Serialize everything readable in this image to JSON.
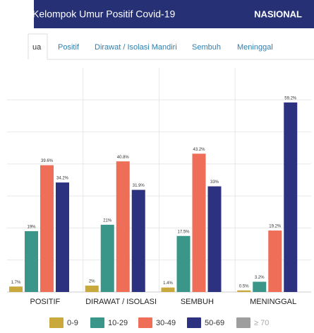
{
  "header": {
    "title": "Kelompok Umur Positif Covid-19",
    "scope": "NASIONAL"
  },
  "tabs": [
    "ua",
    "Positif",
    "Dirawat / Isolasi Mandiri",
    "Sembuh",
    "Meninggal"
  ],
  "chart_data": {
    "type": "bar",
    "categories": [
      "POSITIF",
      "DIRAWAT / ISOLASI",
      "SEMBUH",
      "MENINGGAL"
    ],
    "series": [
      {
        "name": "0-9",
        "color": "#c9a83c",
        "values": [
          1.7,
          2,
          1.4,
          0.5
        ],
        "value_labels": [
          "1.7%",
          "2%",
          "1.4%",
          "0.5%"
        ]
      },
      {
        "name": "10-29",
        "color": "#3a9689",
        "values": [
          19,
          21,
          17.5,
          3.2
        ],
        "value_labels": [
          "19%",
          "21%",
          "17.5%",
          "3.2%"
        ]
      },
      {
        "name": "30-49",
        "color": "#ee6e57",
        "values": [
          39.6,
          40.8,
          43.2,
          19.2
        ],
        "value_labels": [
          "39.6%",
          "40.8%",
          "43.2%",
          "19.2%"
        ]
      },
      {
        "name": "50-69",
        "color": "#2d3280",
        "values": [
          34.2,
          31.9,
          33,
          59.2
        ],
        "value_labels": [
          "34.2%",
          "31.9%",
          "33%",
          "59.2%"
        ]
      },
      {
        "name": "≥ 70",
        "color": "#9e9e9e",
        "hidden": true,
        "values": [
          null,
          null,
          null,
          null
        ]
      }
    ],
    "ylim": [
      0,
      70
    ],
    "yticks": [
      10,
      20,
      30,
      40,
      50,
      60
    ],
    "grid": true
  }
}
